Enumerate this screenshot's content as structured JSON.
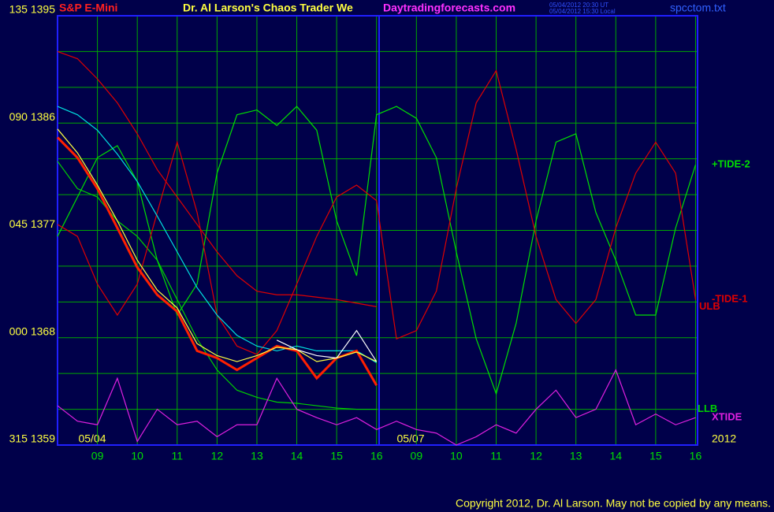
{
  "chart_data": {
    "type": "line",
    "title": "Dr. Al Larson's Chaos Trader We",
    "instrument": "S&P E-Mini",
    "site": "Daytradingforecasts.com",
    "timestamps": [
      "05/04/2012 20:30 UT",
      "05/04/2012 15:30 Local"
    ],
    "file": "spcctom.txt",
    "copyright": "Copyright 2012, Dr. Al Larson. May not be copied by any means.",
    "date_labels": [
      "05/04",
      "05/07",
      "2012"
    ],
    "grid": true,
    "ylim": [
      1359,
      1395
    ],
    "yticks": [
      {
        "value": 1395,
        "label": "135 1395"
      },
      {
        "value": 1386,
        "label": "090 1386"
      },
      {
        "value": 1377,
        "label": "045 1377"
      },
      {
        "value": 1368,
        "label": "000 1368"
      },
      {
        "value": 1359,
        "label": "315 1359"
      }
    ],
    "ygrid": [
      1362,
      1365,
      1371,
      1374,
      1380,
      1383,
      1389,
      1392
    ],
    "xlim": [
      0,
      16.05
    ],
    "xticks": [
      {
        "value": 1,
        "label": "09"
      },
      {
        "value": 2,
        "label": "10"
      },
      {
        "value": 3,
        "label": "11"
      },
      {
        "value": 4,
        "label": "12"
      },
      {
        "value": 5,
        "label": "13"
      },
      {
        "value": 6,
        "label": "14"
      },
      {
        "value": 7,
        "label": "15"
      },
      {
        "value": 8,
        "label": "16"
      },
      {
        "value": 9,
        "label": "09"
      },
      {
        "value": 10,
        "label": "10"
      },
      {
        "value": 11,
        "label": "11"
      },
      {
        "value": 12,
        "label": "12"
      },
      {
        "value": 13,
        "label": "13"
      },
      {
        "value": 14,
        "label": "14"
      },
      {
        "value": 15,
        "label": "15"
      },
      {
        "value": 16,
        "label": "16"
      }
    ],
    "x": [
      0,
      0.5,
      1,
      1.5,
      2,
      2.5,
      3,
      3.5,
      4,
      4.5,
      5,
      5.5,
      6,
      6.5,
      7,
      7.5,
      8,
      8.5,
      9,
      9.5,
      10,
      10.5,
      11,
      11.5,
      12,
      12.5,
      13,
      13.5,
      14,
      14.5,
      15,
      15.5,
      16
    ],
    "series": [
      {
        "name": "ULB",
        "color": "#e00000",
        "values": [
          1392.0,
          1391.4,
          1389.7,
          1387.7,
          1385.1,
          1382.1,
          1379.8,
          1377.5,
          1375.2,
          1373.2,
          1371.9,
          1371.6,
          1371.6,
          1371.4,
          1371.2,
          1370.9,
          1370.6,
          null,
          null,
          null,
          null,
          null,
          null,
          null,
          null,
          null,
          null,
          null,
          null,
          null,
          null,
          null,
          null
        ]
      },
      {
        "name": "LLB",
        "color": "#00d000",
        "values": [
          1382.8,
          1380.5,
          1379.8,
          1377.8,
          1376.5,
          1374.5,
          1371.2,
          1367.9,
          1365.3,
          1363.6,
          1363.0,
          1362.6,
          1362.5,
          1362.3,
          1362.1,
          1362.0,
          1362.0,
          null,
          null,
          null,
          null,
          null,
          null,
          null,
          null,
          null,
          null,
          null,
          null,
          null,
          null,
          null,
          null
        ]
      },
      {
        "name": "+TIDE-2",
        "color": "#00e000",
        "values": [
          1376.5,
          1379.8,
          1383.1,
          1384.1,
          1381.1,
          1374.5,
          1369.9,
          1372.5,
          1381.8,
          1386.7,
          1387.1,
          1385.8,
          1387.4,
          1385.4,
          1377.8,
          1373.2,
          1386.7,
          1387.4,
          1386.4,
          1383.1,
          1375.2,
          1367.9,
          1363.3,
          1369.2,
          1377.8,
          1384.4,
          1385.1,
          1378.5,
          1374.5,
          1369.9,
          1369.9,
          1377.2,
          1382.5
        ]
      },
      {
        "name": "-TIDE-1",
        "color": "#e00000",
        "values": [
          1377.5,
          1376.5,
          1372.5,
          1369.9,
          1372.5,
          1378.5,
          1384.4,
          1378.5,
          1369.9,
          1367.3,
          1366.6,
          1368.6,
          1372.5,
          1376.5,
          1379.8,
          1380.8,
          1379.5,
          1367.9,
          1368.6,
          1371.9,
          1380.5,
          1387.7,
          1390.4,
          1383.8,
          1376.5,
          1371.2,
          1369.2,
          1371.2,
          1377.2,
          1381.8,
          1384.4,
          1381.8,
          1371.2
        ]
      },
      {
        "name": "XTIDE",
        "color": "#e020e0",
        "values": [
          1362.3,
          1361.0,
          1360.7,
          1364.6,
          1359.3,
          1362.0,
          1360.7,
          1361.0,
          1359.7,
          1360.7,
          1360.7,
          1364.6,
          1362.0,
          1361.3,
          1360.7,
          1361.3,
          1360.3,
          1361.0,
          1360.3,
          1360.0,
          1359.0,
          1359.7,
          1360.7,
          1360.0,
          1362.0,
          1363.6,
          1361.3,
          1362.0,
          1365.3,
          1360.7,
          1361.6,
          1360.7,
          1361.3
        ]
      },
      {
        "color": "#00e0e0",
        "values": [
          1387.4,
          1386.7,
          1385.4,
          1383.4,
          1381.1,
          1378.2,
          1375.2,
          1372.2,
          1369.9,
          1368.2,
          1367.3,
          1366.9,
          1367.3,
          1366.9,
          1366.9,
          1366.9,
          1365.9,
          null,
          null,
          null,
          null,
          null,
          null,
          null,
          null,
          null,
          null,
          null,
          null,
          null,
          null,
          null,
          null
        ]
      },
      {
        "color": "#ff2000",
        "values": [
          1384.8,
          1383.1,
          1380.5,
          1377.2,
          1373.9,
          1371.6,
          1370.2,
          1366.9,
          1366.3,
          1365.3,
          1366.3,
          1367.3,
          1366.9,
          1364.6,
          1366.3,
          1366.9,
          1364.0,
          null,
          null,
          null,
          null,
          null,
          null,
          null,
          null,
          null,
          null,
          null,
          null,
          null,
          null,
          null,
          null
        ]
      },
      {
        "color": "#ffff40",
        "values": [
          1385.5,
          1383.5,
          1380.8,
          1377.8,
          1374.5,
          1372.0,
          1370.5,
          1367.5,
          1366.5,
          1366.0,
          1366.5,
          1367.2,
          1367.0,
          1366.0,
          1366.3,
          1366.8,
          1366.0,
          null,
          null,
          null,
          null,
          null,
          null,
          null,
          null,
          null,
          null,
          null,
          null,
          null,
          null,
          null,
          null
        ]
      },
      {
        "color": "#ffffff",
        "values": [
          null,
          null,
          null,
          null,
          null,
          null,
          null,
          null,
          null,
          null,
          null,
          1367.8,
          1367.0,
          1366.5,
          1366.3,
          1368.6,
          1366.0,
          null,
          null,
          null,
          null,
          null,
          null,
          null,
          null,
          null,
          null,
          null,
          null,
          null,
          null,
          null,
          null
        ]
      }
    ]
  }
}
